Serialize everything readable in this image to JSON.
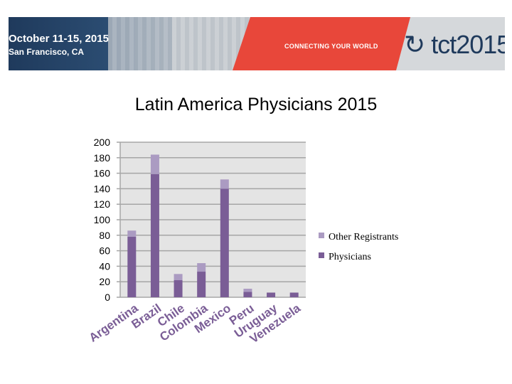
{
  "banner": {
    "date": "October 11-15, 2015",
    "city": "San Francisco, CA",
    "tagline": "CONNECTING YOUR WORLD",
    "logo": "tct2015"
  },
  "colors": {
    "physicians": "#7a5d96",
    "other": "#ab9bc2",
    "plot_bg": "#e4e4e4",
    "grid": "#a6a6a6",
    "tick_label": "#000000",
    "category_label": "#7a5d96"
  },
  "chart_data": {
    "type": "bar",
    "stacked": true,
    "title": "Latin America Physicians 2015",
    "categories": [
      "Argentina",
      "Brazil",
      "Chile",
      "Colombia",
      "Mexico",
      "Peru",
      "Uruguay",
      "Venezuela"
    ],
    "series": [
      {
        "name": "Physicians",
        "values": [
          78,
          159,
          22,
          33,
          140,
          7,
          6,
          6
        ]
      },
      {
        "name": "Other Registrants",
        "values": [
          8,
          25,
          8,
          11,
          12,
          4,
          0,
          0
        ]
      }
    ],
    "yticks": [
      "0",
      "20",
      "40",
      "60",
      "80",
      "100",
      "120",
      "140",
      "160",
      "180",
      "200"
    ],
    "ylim": [
      0,
      200
    ],
    "grid": true,
    "legend": "right"
  }
}
